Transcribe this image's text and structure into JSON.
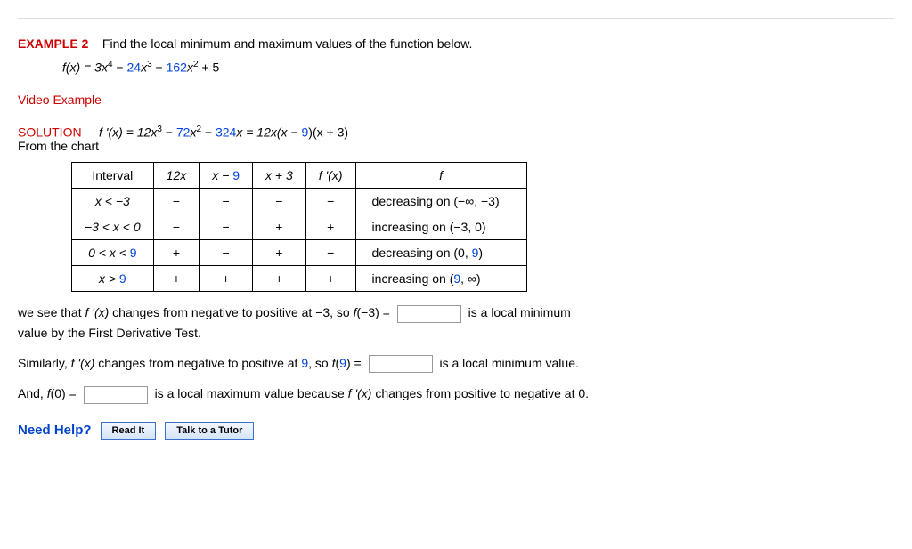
{
  "example": {
    "label": "EXAMPLE 2",
    "prompt": "Find the local minimum and maximum values of the function below."
  },
  "function": {
    "prefix": "f(x) = 3x",
    "exp1": "4",
    "mid1": " − ",
    "term2_coeff": "24",
    "term2_var": "x",
    "exp2": "3",
    "mid2": " − ",
    "term3_coeff": "162",
    "term3_var": "x",
    "exp3": "2",
    "tail": " + 5"
  },
  "video_link": "Video Example",
  "solution": {
    "label": "SOLUTION",
    "deriv_pre": "f '(x) = 12x",
    "deriv_e1": "3",
    "deriv_mid1": " − ",
    "deriv_c2": "72",
    "deriv_v2": "x",
    "deriv_e2": "2",
    "deriv_mid2": " − ",
    "deriv_c3": "324",
    "deriv_tail": "x = 12x(x − ",
    "deriv_k1": "9",
    "deriv_tail2": ")(x + 3)",
    "from_chart": "From the chart"
  },
  "table": {
    "headers": {
      "interval": "Interval",
      "c1": "12x",
      "c2_pre": "x − ",
      "c2_k": "9",
      "c3": "x + 3",
      "c4": "f '(x)",
      "c5": "f"
    },
    "rows": [
      {
        "interval": "x < −3",
        "s1": "−",
        "s2": "−",
        "s3": "−",
        "s4": "−",
        "desc": "decreasing on  (−∞, −3)"
      },
      {
        "interval": "−3 < x < 0",
        "s1": "−",
        "s2": "−",
        "s3": "+",
        "s4": "+",
        "desc": "increasing on  (−3, 0)"
      },
      {
        "interval_pre": "0 < x < ",
        "interval_k": "9",
        "s1": "+",
        "s2": "−",
        "s3": "+",
        "s4": "−",
        "desc_pre": "decreasing on  (0, ",
        "desc_k": "9",
        "desc_post": ")"
      },
      {
        "interval_pre": "x > ",
        "interval_k": "9",
        "s1": "+",
        "s2": "+",
        "s3": "+",
        "s4": "+",
        "desc_pre": "increasing on  (",
        "desc_k": "9",
        "desc_post": ", ∞)"
      }
    ]
  },
  "para1": {
    "t1": "we see that  ",
    "t2": "f '(x)",
    "t3": "  changes from negative to positive at  −3,  so  ",
    "t4": "f",
    "t5": "(−3) =",
    "t6": "is a local minimum",
    "t7": "value by the First Derivative Test."
  },
  "para2": {
    "t1": "Similarly,  ",
    "t2": "f '(x)",
    "t3": "  changes from negative to positive at ",
    "k": "9",
    "t4": ", so  ",
    "t5": "f",
    "t6": "(",
    "k2": "9",
    "t7": ") =",
    "t8": "is a local minimum value."
  },
  "para3": {
    "t1": "And,  ",
    "t2": "f",
    "t3": "(0) =",
    "t4": "is a local maximum value because  ",
    "t5": "f '(x)",
    "t6": "  changes from positive to negative at 0."
  },
  "help": {
    "label": "Need Help?",
    "read": "Read It",
    "tutor": "Talk to a Tutor"
  },
  "colors": {
    "accent_red": "#cc0000",
    "accent_blue": "#0044dd",
    "button_border": "#3a6fcf"
  }
}
